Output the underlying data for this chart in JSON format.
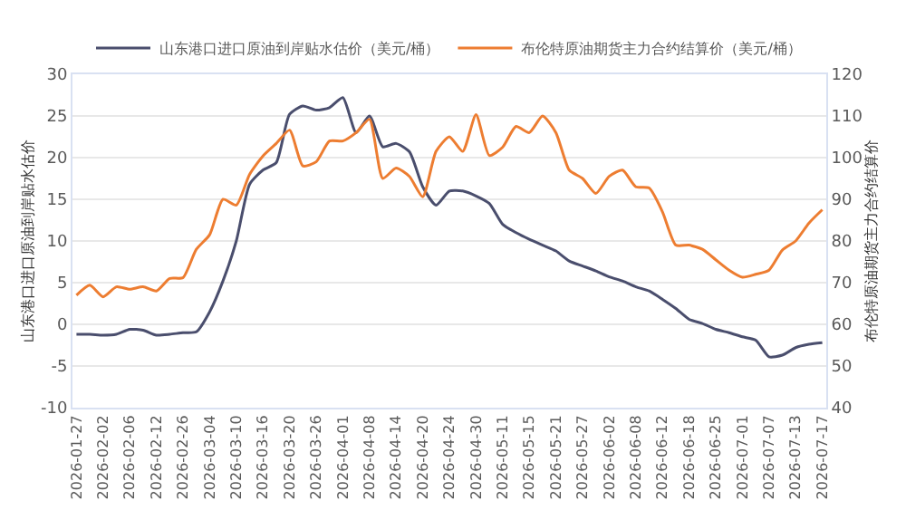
{
  "chart_data": {
    "type": "line",
    "categories": [
      "2026-01-27",
      null,
      "2026-02-02",
      null,
      "2026-02-06",
      null,
      "2026-02-12",
      null,
      "2026-02-26",
      null,
      "2026-03-04",
      null,
      "2026-03-10",
      null,
      "2026-03-16",
      null,
      "2026-03-20",
      null,
      "2026-03-26",
      null,
      "2026-04-01",
      null,
      "2026-04-08",
      null,
      "2026-04-14",
      null,
      "2026-04-20",
      null,
      "2026-04-24",
      null,
      "2026-04-30",
      null,
      "2026-05-11",
      null,
      "2026-05-15",
      null,
      "2026-05-21",
      null,
      "2026-05-27",
      null,
      "2026-06-02",
      null,
      "2026-06-08",
      null,
      "2026-06-12",
      null,
      "2026-06-18",
      null,
      "2026-06-25",
      null,
      "2026-07-01",
      null,
      "2026-07-07",
      null,
      "2026-07-13",
      null,
      "2026-07-17"
    ],
    "series": [
      {
        "name": "山东港口进口原油到岸贴水估价（美元/桶）",
        "color": "#4a4e6d",
        "values": [
          -1.2,
          -1.2,
          -1.3,
          -1.2,
          -0.6,
          -0.7,
          -1.3,
          -1.2,
          -1,
          -0.9,
          1.5,
          5.2,
          10,
          16.8,
          18.5,
          19.4,
          25.2,
          26.2,
          25.7,
          26,
          27.2,
          23,
          25,
          21.3,
          21.7,
          20.7,
          16.5,
          14.3,
          16,
          16,
          15.4,
          14.5,
          12,
          11,
          10.2,
          9.5,
          8.8,
          7.6,
          7,
          6.4,
          5.7,
          5.2,
          4.5,
          4,
          3,
          1.9,
          0.6,
          0.1,
          -0.6,
          -1,
          -1.5,
          -1.9,
          -3.9,
          -3.7,
          -2.8,
          -2.4,
          -2.2
        ]
      },
      {
        "name": "布伦特原油期货主力合约结算价（美元/桶）",
        "color": "#ed7d31",
        "axis": "y2",
        "values": [
          67,
          69.4,
          66.6,
          69,
          68.4,
          69,
          68,
          71,
          71.2,
          78,
          81.5,
          90,
          88.6,
          96,
          100.4,
          103.4,
          106.6,
          98,
          99,
          104,
          104,
          106,
          109.2,
          95,
          97.5,
          95.5,
          90.6,
          101.5,
          105,
          101.5,
          110.3,
          100.5,
          102.5,
          107.5,
          106,
          110,
          106,
          97,
          95,
          91.4,
          95.5,
          97,
          93,
          92.7,
          87,
          79,
          79,
          78,
          75.5,
          73,
          71.3,
          72,
          73,
          77.8,
          80,
          84.3,
          87.5
        ]
      }
    ],
    "ylabel": "山东港口进口原油到岸贴水估价",
    "y2label": "布伦特原油期货主力合约结算价",
    "ylim": [
      -10,
      30
    ],
    "yticks": [
      -10,
      -5,
      0,
      5,
      10,
      15,
      20,
      25,
      30
    ],
    "y2lim": [
      40,
      120
    ],
    "y2ticks": [
      40,
      50,
      60,
      70,
      80,
      90,
      100,
      110,
      120
    ],
    "grid": "y",
    "legend": "top",
    "marker": "none",
    "line_style": "solid"
  }
}
